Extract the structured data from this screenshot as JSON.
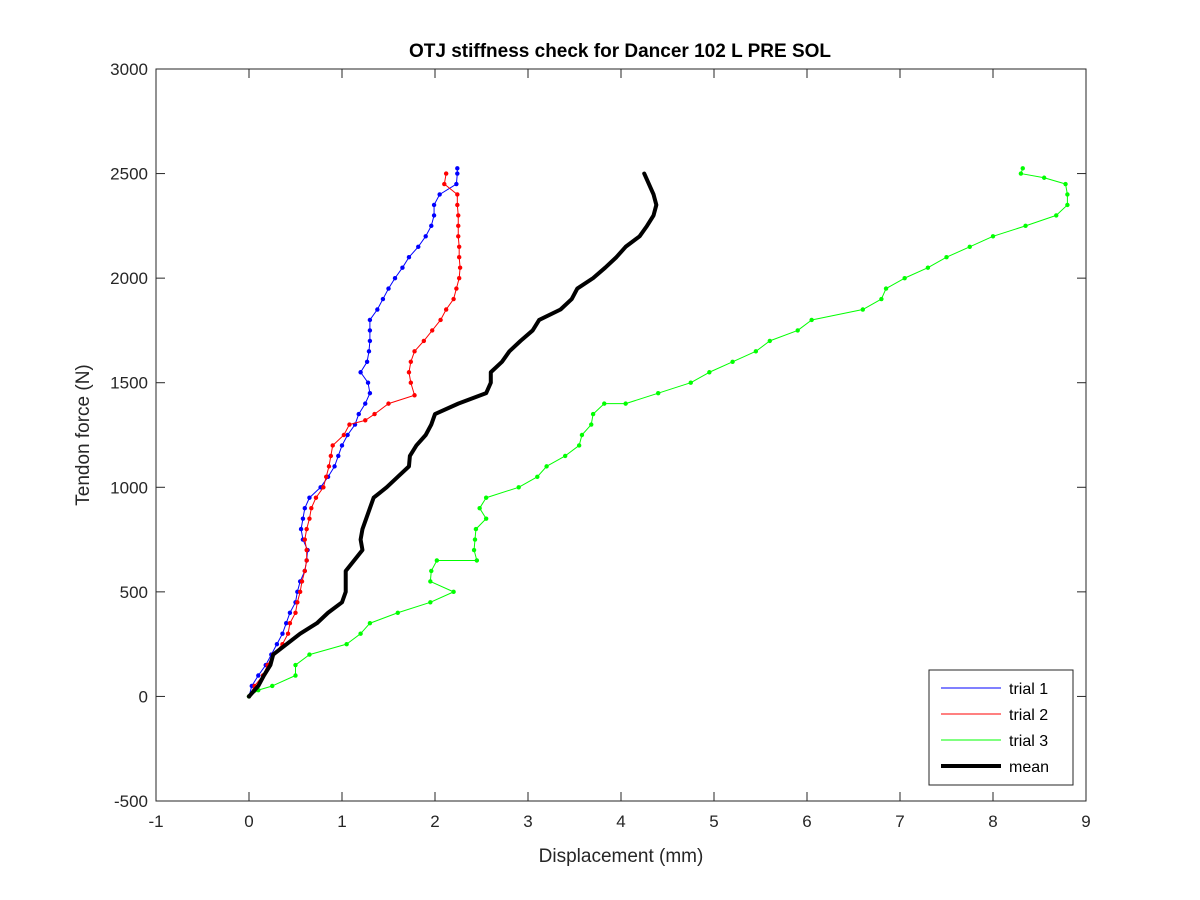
{
  "chart_data": {
    "type": "line",
    "title": "OTJ stiffness check for Dancer 102 L PRE SOL",
    "xlabel": "Displacement (mm)",
    "ylabel": "Tendon force (N)",
    "xlim": [
      -1,
      9
    ],
    "ylim": [
      -500,
      3000
    ],
    "xticks": [
      -1,
      0,
      1,
      2,
      3,
      4,
      5,
      6,
      7,
      8,
      9
    ],
    "yticks": [
      -500,
      0,
      500,
      1000,
      1500,
      2000,
      2500,
      3000
    ],
    "grid": false,
    "legend_position": "bottom-right",
    "series": [
      {
        "name": "trial 1",
        "color": "#0000ff",
        "markers": true,
        "points": [
          [
            0.0,
            0
          ],
          [
            0.03,
            50
          ],
          [
            0.1,
            100
          ],
          [
            0.18,
            150
          ],
          [
            0.24,
            200
          ],
          [
            0.3,
            250
          ],
          [
            0.36,
            300
          ],
          [
            0.4,
            350
          ],
          [
            0.44,
            400
          ],
          [
            0.5,
            450
          ],
          [
            0.52,
            500
          ],
          [
            0.55,
            550
          ],
          [
            0.6,
            600
          ],
          [
            0.62,
            650
          ],
          [
            0.63,
            700
          ],
          [
            0.58,
            750
          ],
          [
            0.56,
            800
          ],
          [
            0.58,
            850
          ],
          [
            0.6,
            900
          ],
          [
            0.65,
            950
          ],
          [
            0.77,
            1000
          ],
          [
            0.85,
            1050
          ],
          [
            0.92,
            1100
          ],
          [
            0.96,
            1150
          ],
          [
            1.0,
            1200
          ],
          [
            1.06,
            1250
          ],
          [
            1.14,
            1300
          ],
          [
            1.18,
            1350
          ],
          [
            1.25,
            1400
          ],
          [
            1.3,
            1450
          ],
          [
            1.28,
            1500
          ],
          [
            1.2,
            1550
          ],
          [
            1.27,
            1600
          ],
          [
            1.29,
            1650
          ],
          [
            1.3,
            1700
          ],
          [
            1.3,
            1750
          ],
          [
            1.3,
            1800
          ],
          [
            1.38,
            1850
          ],
          [
            1.44,
            1900
          ],
          [
            1.5,
            1950
          ],
          [
            1.57,
            2000
          ],
          [
            1.65,
            2050
          ],
          [
            1.72,
            2100
          ],
          [
            1.82,
            2150
          ],
          [
            1.9,
            2200
          ],
          [
            1.96,
            2250
          ],
          [
            1.99,
            2300
          ],
          [
            1.99,
            2350
          ],
          [
            2.05,
            2400
          ],
          [
            2.23,
            2450
          ],
          [
            2.24,
            2500
          ],
          [
            2.24,
            2525
          ]
        ]
      },
      {
        "name": "trial 2",
        "color": "#ff0000",
        "markers": true,
        "points": [
          [
            0.0,
            0
          ],
          [
            0.06,
            50
          ],
          [
            0.15,
            100
          ],
          [
            0.2,
            150
          ],
          [
            0.26,
            200
          ],
          [
            0.36,
            250
          ],
          [
            0.42,
            300
          ],
          [
            0.44,
            350
          ],
          [
            0.5,
            400
          ],
          [
            0.52,
            450
          ],
          [
            0.55,
            500
          ],
          [
            0.57,
            550
          ],
          [
            0.6,
            600
          ],
          [
            0.62,
            650
          ],
          [
            0.62,
            700
          ],
          [
            0.6,
            750
          ],
          [
            0.62,
            800
          ],
          [
            0.65,
            850
          ],
          [
            0.67,
            900
          ],
          [
            0.72,
            950
          ],
          [
            0.8,
            1000
          ],
          [
            0.83,
            1050
          ],
          [
            0.86,
            1100
          ],
          [
            0.88,
            1150
          ],
          [
            0.9,
            1200
          ],
          [
            1.02,
            1250
          ],
          [
            1.08,
            1300
          ],
          [
            1.25,
            1320
          ],
          [
            1.35,
            1350
          ],
          [
            1.5,
            1400
          ],
          [
            1.78,
            1440
          ],
          [
            1.74,
            1500
          ],
          [
            1.72,
            1550
          ],
          [
            1.74,
            1600
          ],
          [
            1.78,
            1650
          ],
          [
            1.88,
            1700
          ],
          [
            1.97,
            1750
          ],
          [
            2.06,
            1800
          ],
          [
            2.12,
            1850
          ],
          [
            2.2,
            1900
          ],
          [
            2.23,
            1950
          ],
          [
            2.26,
            2000
          ],
          [
            2.27,
            2050
          ],
          [
            2.26,
            2100
          ],
          [
            2.26,
            2150
          ],
          [
            2.25,
            2200
          ],
          [
            2.25,
            2250
          ],
          [
            2.25,
            2300
          ],
          [
            2.24,
            2350
          ],
          [
            2.24,
            2400
          ],
          [
            2.1,
            2450
          ],
          [
            2.12,
            2500
          ]
        ]
      },
      {
        "name": "trial 3",
        "color": "#00ff00",
        "markers": true,
        "points": [
          [
            0.0,
            0
          ],
          [
            0.1,
            30
          ],
          [
            0.25,
            50
          ],
          [
            0.5,
            100
          ],
          [
            0.5,
            150
          ],
          [
            0.65,
            200
          ],
          [
            1.05,
            250
          ],
          [
            1.2,
            300
          ],
          [
            1.3,
            350
          ],
          [
            1.6,
            400
          ],
          [
            1.95,
            450
          ],
          [
            2.2,
            500
          ],
          [
            1.95,
            550
          ],
          [
            1.96,
            600
          ],
          [
            2.02,
            650
          ],
          [
            2.45,
            650
          ],
          [
            2.42,
            700
          ],
          [
            2.43,
            750
          ],
          [
            2.44,
            800
          ],
          [
            2.55,
            850
          ],
          [
            2.48,
            900
          ],
          [
            2.55,
            950
          ],
          [
            2.9,
            1000
          ],
          [
            3.1,
            1050
          ],
          [
            3.2,
            1100
          ],
          [
            3.4,
            1150
          ],
          [
            3.55,
            1200
          ],
          [
            3.58,
            1250
          ],
          [
            3.68,
            1300
          ],
          [
            3.7,
            1350
          ],
          [
            3.82,
            1400
          ],
          [
            4.05,
            1400
          ],
          [
            4.4,
            1450
          ],
          [
            4.75,
            1500
          ],
          [
            4.95,
            1550
          ],
          [
            5.2,
            1600
          ],
          [
            5.45,
            1650
          ],
          [
            5.6,
            1700
          ],
          [
            5.9,
            1750
          ],
          [
            6.05,
            1800
          ],
          [
            6.6,
            1850
          ],
          [
            6.8,
            1900
          ],
          [
            6.85,
            1950
          ],
          [
            7.05,
            2000
          ],
          [
            7.3,
            2050
          ],
          [
            7.5,
            2100
          ],
          [
            7.75,
            2150
          ],
          [
            8.0,
            2200
          ],
          [
            8.35,
            2250
          ],
          [
            8.68,
            2300
          ],
          [
            8.8,
            2350
          ],
          [
            8.8,
            2400
          ],
          [
            8.78,
            2450
          ],
          [
            8.55,
            2480
          ],
          [
            8.3,
            2500
          ],
          [
            8.32,
            2525
          ]
        ]
      },
      {
        "name": "mean",
        "color": "#000000",
        "markers": false,
        "points": [
          [
            0.0,
            0
          ],
          [
            0.1,
            50
          ],
          [
            0.16,
            100
          ],
          [
            0.23,
            150
          ],
          [
            0.26,
            200
          ],
          [
            0.55,
            300
          ],
          [
            0.73,
            350
          ],
          [
            0.85,
            400
          ],
          [
            1.0,
            450
          ],
          [
            1.04,
            500
          ],
          [
            1.04,
            600
          ],
          [
            1.13,
            650
          ],
          [
            1.22,
            700
          ],
          [
            1.2,
            750
          ],
          [
            1.22,
            800
          ],
          [
            1.26,
            850
          ],
          [
            1.3,
            900
          ],
          [
            1.34,
            950
          ],
          [
            1.48,
            1000
          ],
          [
            1.6,
            1050
          ],
          [
            1.72,
            1100
          ],
          [
            1.73,
            1150
          ],
          [
            1.8,
            1200
          ],
          [
            1.9,
            1250
          ],
          [
            1.96,
            1300
          ],
          [
            2.0,
            1350
          ],
          [
            2.25,
            1400
          ],
          [
            2.55,
            1450
          ],
          [
            2.6,
            1500
          ],
          [
            2.6,
            1550
          ],
          [
            2.72,
            1600
          ],
          [
            2.8,
            1650
          ],
          [
            2.92,
            1700
          ],
          [
            3.05,
            1750
          ],
          [
            3.12,
            1800
          ],
          [
            3.35,
            1850
          ],
          [
            3.47,
            1900
          ],
          [
            3.53,
            1950
          ],
          [
            3.7,
            2000
          ],
          [
            3.83,
            2050
          ],
          [
            3.95,
            2100
          ],
          [
            4.05,
            2150
          ],
          [
            4.2,
            2200
          ],
          [
            4.28,
            2250
          ],
          [
            4.35,
            2300
          ],
          [
            4.38,
            2350
          ],
          [
            4.35,
            2400
          ],
          [
            4.25,
            2500
          ]
        ]
      }
    ]
  }
}
